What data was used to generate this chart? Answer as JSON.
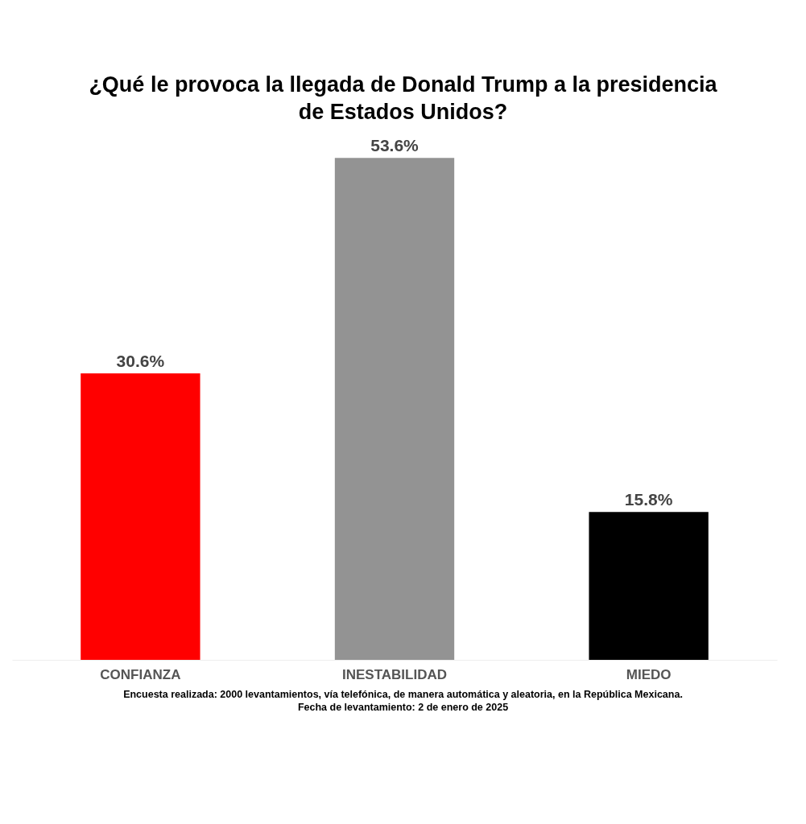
{
  "chart_data": {
    "type": "bar",
    "title": "¿Qué le provoca la llegada de Donald Trump a la presidencia de Estados Unidos?",
    "categories": [
      "CONFIANZA",
      "INESTABILIDAD",
      "MIEDO"
    ],
    "values": [
      30.6,
      53.6,
      15.8
    ],
    "value_labels": [
      "30.6%",
      "53.6%",
      "15.8%"
    ],
    "colors": [
      "#ff0000",
      "#939393",
      "#000000"
    ],
    "annotations": [
      "Encuesta realizada: 2000 levantamientos, vía telefónica, de manera automática y aleatoria, en  la República Mexicana.",
      "Fecha de levantamiento: 2 de enero de 2025"
    ]
  }
}
